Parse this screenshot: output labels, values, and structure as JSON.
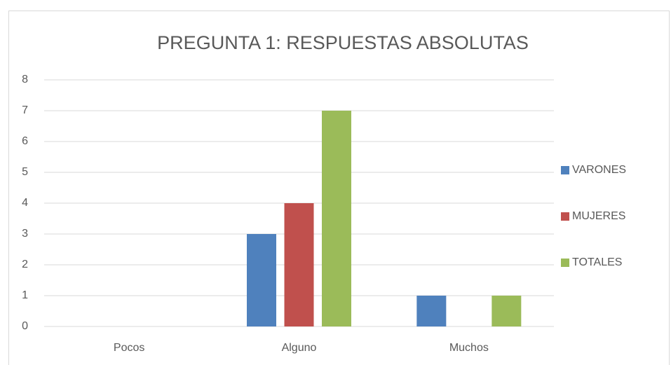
{
  "chart_data": {
    "type": "bar",
    "title": "PREGUNTA 1: RESPUESTAS ABSOLUTAS",
    "categories": [
      "Pocos",
      "Alguno",
      "Muchos"
    ],
    "series": [
      {
        "name": "VARONES",
        "color": "#4f81bd",
        "values": [
          0,
          3,
          1
        ]
      },
      {
        "name": "MUJERES",
        "color": "#c0504d",
        "values": [
          0,
          4,
          0
        ]
      },
      {
        "name": "TOTALES",
        "color": "#9bbb59",
        "values": [
          0,
          7,
          1
        ]
      }
    ],
    "ylim": [
      0,
      8
    ],
    "yticks": [
      0,
      1,
      2,
      3,
      4,
      5,
      6,
      7,
      8
    ],
    "grid": true,
    "legend": "right"
  }
}
